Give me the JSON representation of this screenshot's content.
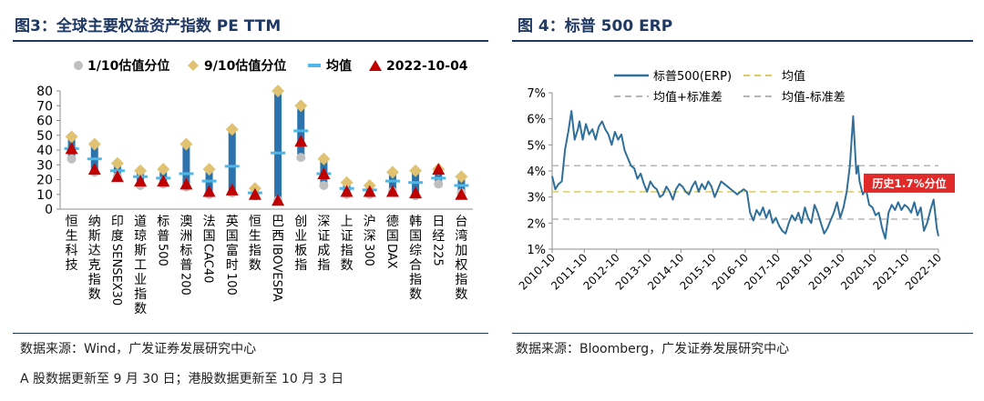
{
  "left_title": "图3：全球主要权益资产指数 PE TTM",
  "right_title": "图 4：标普 500 ERP",
  "left_source": "数据来源：Wind，广发证券发展研究中心",
  "right_source": "数据来源：Bloomberg，广发证券发展研究中心",
  "footnote": "A 股数据更新至 9 月 30 日；港股数据更新至 10 月 3 日",
  "colors": {
    "dark_blue": "#1f3864",
    "bar": "#2c73ad",
    "p10": "#bfbfbf",
    "p90": "#e0c272",
    "mean": "#4fb7e6",
    "current": "#c00000",
    "line": "#2f6f9a",
    "ann": "#e12b2b",
    "mean_dash": "#d9c96b",
    "band_dash": "#b5b5b5"
  },
  "chart_data": [
    {
      "type": "range_dot",
      "title": "图3：全球主要权益资产指数 PE TTM",
      "ylim": [
        0,
        80
      ],
      "yticks": [
        0,
        10,
        20,
        30,
        40,
        50,
        60,
        70,
        80
      ],
      "legend": {
        "p10": "1/10估值分位",
        "p90": "9/10估值分位",
        "mean": "均值",
        "current": "2022-10-04"
      },
      "categories": [
        "恒生科技",
        "纳斯达克指数",
        "印度SENSEX30",
        "道琼斯工业指数",
        "标普500",
        "澳洲标普200",
        "法国CAC40",
        "英国富时100",
        "恒生指数",
        "巴西IBOVESPA",
        "创业板指",
        "深证成指",
        "上证指数",
        "沪深300",
        "德国DAX",
        "韩国综合指数",
        "日经225",
        "台湾加权指数"
      ],
      "label_lines": [
        [
          "恒",
          "生",
          "科",
          "技"
        ],
        [
          "纳",
          "斯",
          "达",
          "克",
          "指",
          "数"
        ],
        [
          "印",
          "度",
          "SENSEX30"
        ],
        [
          "道",
          "琼",
          "斯",
          "工",
          "业",
          "指",
          "数"
        ],
        [
          "标",
          "普",
          "500"
        ],
        [
          "澳",
          "洲",
          "标",
          "普",
          "200"
        ],
        [
          "法",
          "国",
          "CAC40"
        ],
        [
          "英",
          "国",
          "富",
          "时",
          "100"
        ],
        [
          "恒",
          "生",
          "指",
          "数"
        ],
        [
          "巴",
          "西",
          "IBOVESPA"
        ],
        [
          "创",
          "业",
          "板",
          "指"
        ],
        [
          "深",
          "证",
          "成",
          "指"
        ],
        [
          "上",
          "证",
          "指",
          "数"
        ],
        [
          "沪",
          "深",
          "300"
        ],
        [
          "德",
          "国",
          "DAX"
        ],
        [
          "韩",
          "国",
          "综",
          "合",
          "指",
          "数"
        ],
        [
          "日",
          "经",
          "225"
        ],
        [
          "台",
          "湾",
          "加",
          "权",
          "指",
          "数"
        ]
      ],
      "p10": [
        34,
        25,
        22,
        16,
        17,
        15,
        10,
        11,
        9,
        6,
        35,
        16,
        10,
        10,
        12,
        9,
        17,
        11
      ],
      "p90": [
        49,
        44,
        31,
        26,
        27,
        44,
        27,
        54,
        14,
        80,
        70,
        34,
        18,
        16,
        25,
        26,
        27,
        22
      ],
      "mean": [
        41,
        34,
        26,
        22,
        21,
        24,
        19,
        29,
        11,
        38,
        53,
        24,
        14,
        13,
        19,
        18,
        21,
        16
      ],
      "current": [
        41,
        27,
        22,
        19,
        19,
        17,
        12,
        13,
        10,
        6,
        46,
        24,
        12,
        12,
        12,
        11,
        27,
        10
      ]
    },
    {
      "type": "line",
      "title": "图 4：标普 500 ERP",
      "ylim": [
        1,
        7
      ],
      "ytick_labels": [
        "1%",
        "2%",
        "3%",
        "4%",
        "5%",
        "6%",
        "7%"
      ],
      "xtick_labels": [
        "2010-10",
        "2011-10",
        "2012-10",
        "2013-10",
        "2014-10",
        "2015-10",
        "2016-10",
        "2017-10",
        "2018-10",
        "2019-10",
        "2020-10",
        "2021-10",
        "2022-10"
      ],
      "legend": {
        "series": "标普500(ERP)",
        "mean": "均值",
        "plus_sd": "均值+标准差",
        "minus_sd": "均值-标准差"
      },
      "mean": 3.2,
      "mean_plus_sd": 4.2,
      "mean_minus_sd": 2.15,
      "annotation": "历史1.7%分位",
      "series": {
        "name": "标普500(ERP)",
        "x": [
          2010.75,
          2010.85,
          2010.95,
          2011.05,
          2011.15,
          2011.25,
          2011.35,
          2011.45,
          2011.55,
          2011.6,
          2011.7,
          2011.8,
          2011.9,
          2012.0,
          2012.1,
          2012.2,
          2012.3,
          2012.4,
          2012.5,
          2012.6,
          2012.7,
          2012.8,
          2012.9,
          2013.0,
          2013.1,
          2013.2,
          2013.3,
          2013.4,
          2013.5,
          2013.6,
          2013.7,
          2013.8,
          2013.9,
          2014.0,
          2014.1,
          2014.2,
          2014.3,
          2014.4,
          2014.5,
          2014.6,
          2014.7,
          2014.8,
          2014.9,
          2015.0,
          2015.1,
          2015.2,
          2015.3,
          2015.4,
          2015.5,
          2015.6,
          2015.7,
          2015.8,
          2015.9,
          2016.0,
          2016.1,
          2016.2,
          2016.3,
          2016.4,
          2016.5,
          2016.6,
          2016.7,
          2016.8,
          2016.9,
          2017.0,
          2017.1,
          2017.2,
          2017.3,
          2017.4,
          2017.5,
          2017.6,
          2017.7,
          2017.8,
          2017.9,
          2018.0,
          2018.1,
          2018.2,
          2018.3,
          2018.4,
          2018.5,
          2018.6,
          2018.7,
          2018.8,
          2018.9,
          2019.0,
          2019.1,
          2019.2,
          2019.3,
          2019.4,
          2019.5,
          2019.6,
          2019.7,
          2019.8,
          2019.9,
          2020.0,
          2020.1,
          2020.2,
          2020.25,
          2020.3,
          2020.4,
          2020.5,
          2020.6,
          2020.7,
          2020.8,
          2020.9,
          2021.0,
          2021.1,
          2021.2,
          2021.3,
          2021.4,
          2021.5,
          2021.6,
          2021.7,
          2021.8,
          2021.9,
          2022.0,
          2022.1,
          2022.2,
          2022.3,
          2022.4,
          2022.5,
          2022.6,
          2022.7,
          2022.75
        ],
        "y": [
          3.8,
          3.3,
          3.5,
          3.6,
          4.8,
          5.5,
          6.3,
          5.2,
          5.6,
          5.9,
          5.2,
          5.8,
          5.4,
          5.6,
          5.2,
          5.7,
          5.9,
          5.6,
          5.4,
          5.0,
          5.5,
          5.2,
          5.4,
          4.8,
          4.5,
          4.2,
          4.1,
          3.7,
          3.9,
          3.5,
          3.2,
          3.6,
          3.4,
          3.3,
          3.0,
          3.1,
          3.4,
          3.2,
          2.9,
          3.3,
          3.5,
          3.4,
          3.2,
          3.1,
          3.4,
          3.6,
          3.2,
          3.5,
          3.3,
          3.6,
          3.4,
          3.0,
          3.3,
          3.6,
          3.5,
          3.4,
          3.3,
          3.2,
          3.1,
          3.2,
          3.3,
          3.2,
          2.4,
          2.1,
          2.5,
          2.3,
          2.6,
          2.2,
          2.5,
          2.0,
          2.2,
          1.9,
          1.7,
          1.6,
          2.0,
          2.3,
          2.1,
          2.4,
          2.0,
          2.6,
          2.2,
          2.0,
          2.7,
          2.4,
          2.0,
          1.6,
          1.8,
          2.1,
          2.4,
          2.8,
          2.2,
          2.6,
          3.2,
          4.2,
          6.1,
          3.9,
          4.2,
          3.6,
          3.1,
          3.3,
          2.7,
          2.6,
          2.3,
          2.4,
          1.8,
          1.4,
          2.4,
          2.7,
          2.5,
          2.8,
          2.5,
          2.7,
          2.6,
          2.4,
          2.8,
          2.3,
          2.6,
          1.7,
          2.0,
          2.5,
          2.9,
          1.8,
          1.5
        ]
      }
    }
  ]
}
